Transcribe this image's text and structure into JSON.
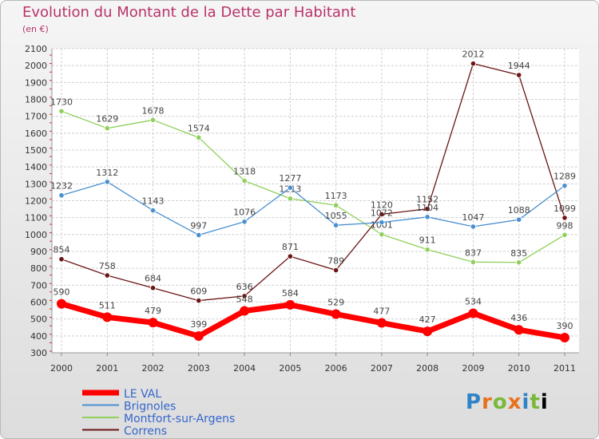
{
  "chart_data": {
    "type": "line",
    "title": "Evolution du Montant de la Dette par Habitant",
    "subtitle": "(en €)",
    "x": [
      "2000",
      "2001",
      "2002",
      "2003",
      "2004",
      "2005",
      "2006",
      "2007",
      "2008",
      "2009",
      "2010",
      "2011"
    ],
    "ylim": [
      300,
      2100
    ],
    "y_ticks": [
      300,
      400,
      500,
      600,
      700,
      800,
      900,
      1000,
      1100,
      1200,
      1300,
      1400,
      1500,
      1600,
      1700,
      1800,
      1900,
      2000,
      2100
    ],
    "grid": true,
    "legend_position": "bottom-left",
    "series": [
      {
        "name": "LE VAL",
        "color": "#ff0000",
        "values": [
          590,
          511,
          479,
          399,
          548,
          584,
          529,
          477,
          427,
          534,
          436,
          390
        ]
      },
      {
        "name": "Brignoles",
        "color": "#4a90d0",
        "values": [
          1232,
          1312,
          1143,
          997,
          1076,
          1277,
          1055,
          1072,
          1104,
          1047,
          1088,
          1289
        ]
      },
      {
        "name": "Montfort-sur-Argens",
        "color": "#8fd05a",
        "values": [
          1730,
          1629,
          1678,
          1574,
          1318,
          1213,
          1173,
          1001,
          911,
          837,
          835,
          998
        ]
      },
      {
        "name": "Correns",
        "color": "#6b1515",
        "values": [
          854,
          758,
          684,
          609,
          636,
          871,
          789,
          1120,
          1152,
          2012,
          1944,
          1099
        ]
      }
    ]
  },
  "logo_text": "Proxiti"
}
